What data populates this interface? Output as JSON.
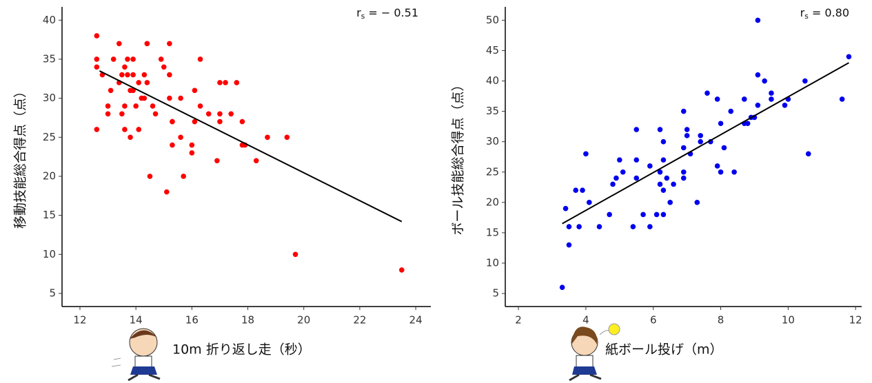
{
  "chart_data": [
    {
      "type": "scatter",
      "xlabel": "10m 折り返し走（秒）",
      "ylabel": "移動技能総合得点（点）",
      "annotation": {
        "symbol": "r",
        "subscript": "s",
        "text": "= − 0.51"
      },
      "color": "#ff0000",
      "line_color": "#000000",
      "xlim": [
        11.36,
        24.54
      ],
      "ylim": [
        3.32,
        41.7
      ],
      "xticks": [
        12,
        14,
        16,
        18,
        20,
        22,
        24
      ],
      "yticks": [
        5,
        10,
        15,
        20,
        25,
        30,
        35,
        40
      ],
      "x": [
        12.6,
        12.6,
        12.6,
        12.6,
        12.8,
        13.0,
        13.0,
        13.2,
        13.1,
        13.4,
        13.4,
        13.5,
        13.5,
        13.6,
        13.6,
        13.6,
        13.7,
        13.7,
        13.8,
        13.8,
        13.9,
        13.9,
        13.9,
        14.0,
        14.1,
        14.1,
        14.2,
        14.3,
        14.3,
        14.4,
        14.4,
        14.4,
        14.5,
        14.6,
        14.7,
        14.9,
        15.0,
        15.1,
        15.2,
        15.2,
        15.2,
        15.3,
        15.3,
        15.3,
        15.6,
        15.6,
        15.7,
        16.0,
        16.0,
        16.1,
        16.1,
        16.3,
        16.3,
        16.6,
        16.9,
        17.0,
        17.0,
        17.0,
        17.2,
        17.4,
        17.6,
        17.8,
        17.8,
        17.9,
        18.3,
        18.7,
        19.4,
        19.7,
        23.5
      ],
      "y": [
        38,
        35,
        34,
        26,
        33,
        29,
        28,
        35,
        31,
        37,
        32,
        33,
        28,
        29,
        26,
        34,
        35,
        33,
        31,
        25,
        35,
        33,
        31,
        29,
        26,
        32,
        30,
        33,
        30,
        37,
        37,
        32,
        20,
        29,
        28,
        35,
        34,
        18,
        30,
        33,
        37,
        27,
        27,
        24,
        30,
        25,
        20,
        23,
        24,
        27,
        31,
        35,
        29,
        28,
        22,
        28,
        27,
        32,
        32,
        28,
        32,
        27,
        24,
        24,
        22,
        25,
        25,
        10,
        8
      ],
      "fit": {
        "x": [
          12.7,
          23.5
        ],
        "y": [
          33.5,
          14.2
        ]
      }
    },
    {
      "type": "scatter",
      "xlabel": "紙ボール投げ（m）",
      "ylabel": "ボール技能総合得点（点）",
      "annotation": {
        "symbol": "r",
        "subscript": "s",
        "text": "= 0.80"
      },
      "color": "#0000ee",
      "line_color": "#000000",
      "xlim": [
        1.61,
        12.18
      ],
      "ylim": [
        2.85,
        52.2
      ],
      "xticks": [
        2,
        4,
        6,
        8,
        10,
        12
      ],
      "yticks": [
        5,
        10,
        15,
        20,
        25,
        30,
        35,
        40,
        45,
        50
      ],
      "x": [
        3.3,
        3.4,
        3.5,
        3.5,
        3.7,
        3.8,
        3.9,
        4.0,
        4.1,
        4.4,
        4.7,
        4.8,
        4.9,
        5.0,
        5.1,
        5.4,
        5.5,
        5.5,
        5.5,
        5.7,
        5.9,
        5.9,
        6.1,
        6.2,
        6.2,
        6.2,
        6.3,
        6.3,
        6.3,
        6.3,
        6.4,
        6.5,
        6.6,
        6.9,
        6.9,
        6.9,
        6.9,
        7.0,
        7.0,
        7.1,
        7.3,
        7.4,
        7.4,
        7.6,
        7.7,
        7.9,
        7.9,
        8.0,
        8.0,
        8.1,
        8.3,
        8.4,
        8.7,
        8.7,
        8.8,
        8.9,
        9.0,
        9.1,
        9.1,
        9.1,
        9.3,
        9.5,
        9.5,
        9.9,
        10.0,
        10.5,
        10.6,
        11.6,
        11.8
      ],
      "y": [
        6,
        19,
        16,
        13,
        22,
        16,
        22,
        28,
        20,
        16,
        18,
        23,
        24,
        27,
        25,
        16,
        32,
        24,
        27,
        18,
        16,
        26,
        18,
        25,
        32,
        23,
        27,
        22,
        30,
        18,
        24,
        20,
        23,
        24,
        25,
        29,
        35,
        32,
        31,
        28,
        20,
        31,
        30,
        38,
        30,
        26,
        37,
        33,
        25,
        29,
        35,
        25,
        33,
        37,
        33,
        34,
        34,
        36,
        50,
        41,
        40,
        37,
        38,
        36,
        37,
        40,
        28,
        37,
        44
      ],
      "fit": {
        "x": [
          3.3,
          11.8
        ],
        "y": [
          16.5,
          43
        ]
      }
    }
  ]
}
